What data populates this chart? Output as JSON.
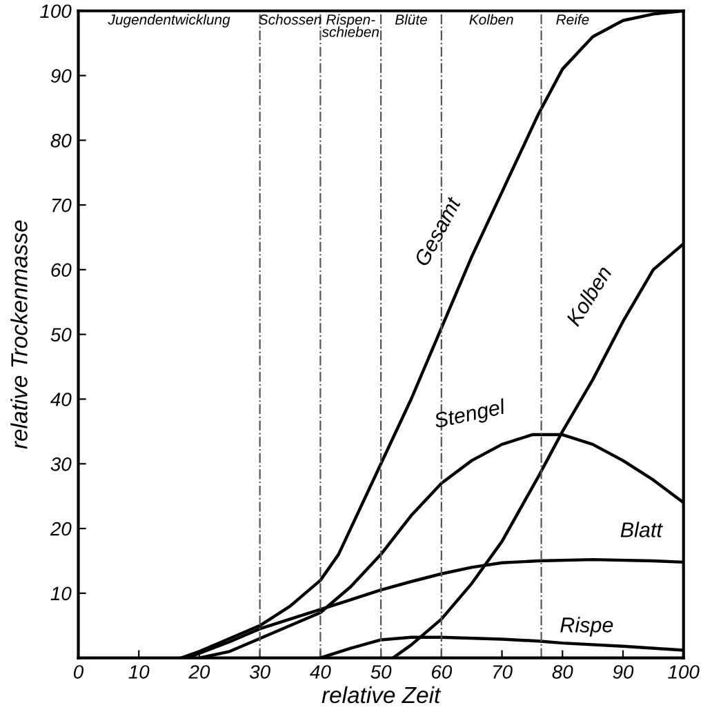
{
  "chart_data": {
    "type": "line",
    "xlabel": "relative Zeit",
    "ylabel": "relative Trockenmasse",
    "xlim": [
      0,
      100
    ],
    "ylim": [
      0,
      100
    ],
    "xticks": [
      0,
      10,
      20,
      30,
      40,
      50,
      60,
      70,
      80,
      90,
      100
    ],
    "yticks": [
      10,
      20,
      30,
      40,
      50,
      60,
      70,
      80,
      90,
      100
    ],
    "grid": false,
    "legend": false,
    "marker": "none",
    "line_style": "solid",
    "series": [
      {
        "name": "Gesamt",
        "color": "#000000",
        "x": [
          17,
          20,
          25,
          30,
          35,
          40,
          43,
          45,
          50,
          55,
          60,
          65,
          70,
          76,
          80,
          85,
          90,
          95,
          100
        ],
        "values": [
          0,
          1,
          3,
          5,
          8,
          12,
          16,
          20,
          30,
          40,
          51,
          62,
          72,
          84,
          91,
          96,
          98.5,
          99.5,
          100
        ]
      },
      {
        "name": "Stengel",
        "color": "#000000",
        "x": [
          20,
          25,
          30,
          35,
          40,
          45,
          50,
          55,
          60,
          65,
          70,
          75,
          80,
          85,
          90,
          95,
          100
        ],
        "values": [
          0,
          1,
          3,
          5,
          7,
          11,
          16,
          22,
          27,
          30.5,
          33,
          34.5,
          34.5,
          33,
          30.5,
          27.5,
          24
        ]
      },
      {
        "name": "Kolben",
        "color": "#000000",
        "x": [
          52,
          55,
          60,
          65,
          70,
          76,
          80,
          85,
          90,
          95,
          100
        ],
        "values": [
          0,
          2,
          6,
          11.5,
          18,
          28,
          35,
          43,
          52,
          60,
          64
        ]
      },
      {
        "name": "Blatt",
        "color": "#000000",
        "x": [
          18,
          25,
          30,
          35,
          40,
          45,
          50,
          55,
          60,
          65,
          70,
          76,
          85,
          95,
          100
        ],
        "values": [
          0,
          2.5,
          4.5,
          6,
          7.5,
          9,
          10.5,
          11.8,
          13,
          14,
          14.7,
          15,
          15.2,
          15,
          14.8
        ]
      },
      {
        "name": "Rispe",
        "color": "#000000",
        "x": [
          40,
          45,
          50,
          55,
          60,
          70,
          76,
          80,
          90,
          100
        ],
        "values": [
          0,
          1.5,
          2.8,
          3.2,
          3.2,
          2.9,
          2.6,
          2.3,
          1.8,
          1.2
        ]
      }
    ],
    "annotations": [
      "Jugendentwicklung",
      "Schossen",
      "Rispen-\nschieben",
      "Blüte",
      "Kolben",
      "Reife"
    ],
    "ref_lines": [
      {
        "axis": "x",
        "value": 30,
        "line_style": "dashdot",
        "color": "#555555"
      },
      {
        "axis": "x",
        "value": 40,
        "line_style": "dashdot",
        "color": "#555555"
      },
      {
        "axis": "x",
        "value": 50,
        "line_style": "dashdot",
        "color": "#555555"
      },
      {
        "axis": "x",
        "value": 60,
        "line_style": "dashdot",
        "color": "#555555"
      },
      {
        "axis": "x",
        "value": 76.5,
        "line_style": "dashdot",
        "color": "#555555"
      }
    ]
  }
}
